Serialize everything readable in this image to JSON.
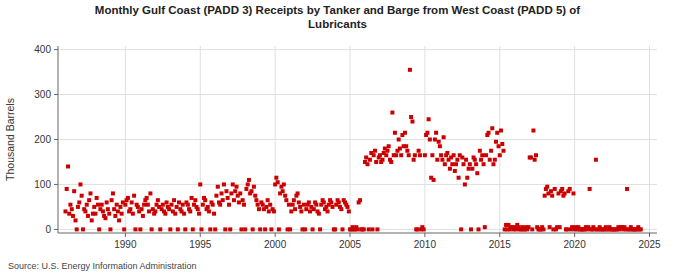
{
  "chart_data": {
    "type": "scatter",
    "title": "Monthly Gulf Coast (PADD 3) Receipts by Tanker and Barge from West Coast (PADD 5) of\nLubricants",
    "y_label": "Thousand Barrels",
    "source": "Source: U.S. Energy Information Administration",
    "color": "#cc0000",
    "marker": "square",
    "grid": true,
    "xlim": [
      1985.5,
      2025.5
    ],
    "ylim": [
      -8,
      408
    ],
    "xticks": [
      1990,
      1995,
      2000,
      2005,
      2010,
      2015,
      2020,
      2025
    ],
    "yticks": [
      0,
      100,
      200,
      300,
      400
    ],
    "x": [
      1986.0,
      1986.08,
      1986.17,
      1986.25,
      1986.33,
      1986.42,
      1986.5,
      1986.58,
      1986.67,
      1986.75,
      1986.83,
      1986.92,
      1987.0,
      1987.08,
      1987.17,
      1987.25,
      1987.33,
      1987.42,
      1987.5,
      1987.58,
      1987.67,
      1987.75,
      1987.83,
      1987.92,
      1988.0,
      1988.08,
      1988.17,
      1988.25,
      1988.33,
      1988.42,
      1988.5,
      1988.58,
      1988.67,
      1988.75,
      1988.83,
      1988.92,
      1989.0,
      1989.08,
      1989.17,
      1989.25,
      1989.33,
      1989.42,
      1989.5,
      1989.58,
      1989.67,
      1989.75,
      1989.83,
      1989.92,
      1990.0,
      1990.08,
      1990.17,
      1990.25,
      1990.33,
      1990.42,
      1990.5,
      1990.58,
      1990.67,
      1990.75,
      1990.83,
      1990.92,
      1991.0,
      1991.08,
      1991.17,
      1991.25,
      1991.33,
      1991.42,
      1991.5,
      1991.58,
      1991.67,
      1991.75,
      1991.83,
      1991.92,
      1992.0,
      1992.08,
      1992.17,
      1992.25,
      1992.33,
      1992.42,
      1992.5,
      1992.58,
      1992.67,
      1992.75,
      1992.83,
      1992.92,
      1993.0,
      1993.08,
      1993.17,
      1993.25,
      1993.33,
      1993.42,
      1993.5,
      1993.58,
      1993.67,
      1993.75,
      1993.83,
      1993.92,
      1994.0,
      1994.08,
      1994.17,
      1994.25,
      1994.33,
      1994.42,
      1994.5,
      1994.58,
      1994.67,
      1994.75,
      1994.83,
      1994.92,
      1995.0,
      1995.08,
      1995.17,
      1995.25,
      1995.33,
      1995.42,
      1995.5,
      1995.58,
      1995.67,
      1995.75,
      1995.83,
      1995.92,
      1996.0,
      1996.08,
      1996.17,
      1996.25,
      1996.33,
      1996.42,
      1996.5,
      1996.58,
      1996.67,
      1996.75,
      1996.83,
      1996.92,
      1997.0,
      1997.08,
      1997.17,
      1997.25,
      1997.33,
      1997.42,
      1997.5,
      1997.58,
      1997.67,
      1997.75,
      1997.83,
      1997.92,
      1998.0,
      1998.08,
      1998.17,
      1998.25,
      1998.33,
      1998.42,
      1998.5,
      1998.58,
      1998.67,
      1998.75,
      1998.83,
      1998.92,
      1999.0,
      1999.08,
      1999.17,
      1999.25,
      1999.33,
      1999.42,
      1999.5,
      1999.58,
      1999.67,
      1999.75,
      1999.83,
      1999.92,
      2000.0,
      2000.08,
      2000.17,
      2000.25,
      2000.33,
      2000.42,
      2000.5,
      2000.58,
      2000.67,
      2000.75,
      2000.83,
      2000.92,
      2001.0,
      2001.08,
      2001.17,
      2001.25,
      2001.33,
      2001.42,
      2001.5,
      2001.58,
      2001.67,
      2001.75,
      2001.83,
      2001.92,
      2002.0,
      2002.08,
      2002.17,
      2002.25,
      2002.33,
      2002.42,
      2002.5,
      2002.58,
      2002.67,
      2002.75,
      2002.83,
      2002.92,
      2003.0,
      2003.08,
      2003.17,
      2003.25,
      2003.33,
      2003.42,
      2003.5,
      2003.58,
      2003.67,
      2003.75,
      2003.83,
      2003.92,
      2004.0,
      2004.08,
      2004.17,
      2004.25,
      2004.33,
      2004.42,
      2004.5,
      2004.58,
      2004.67,
      2004.75,
      2004.83,
      2004.92,
      2005.0,
      2005.08,
      2005.17,
      2005.25,
      2005.33,
      2005.42,
      2005.5,
      2005.58,
      2005.67,
      2005.75,
      2005.83,
      2005.92,
      2006.0,
      2006.08,
      2006.17,
      2006.25,
      2006.33,
      2006.42,
      2006.5,
      2006.58,
      2006.67,
      2006.75,
      2006.83,
      2006.92,
      2007.0,
      2007.08,
      2007.17,
      2007.25,
      2007.33,
      2007.42,
      2007.5,
      2007.58,
      2007.67,
      2007.75,
      2007.83,
      2007.92,
      2008.0,
      2008.08,
      2008.17,
      2008.25,
      2008.33,
      2008.42,
      2008.5,
      2008.58,
      2008.67,
      2008.75,
      2008.83,
      2008.92,
      2009.0,
      2009.08,
      2009.17,
      2009.25,
      2009.33,
      2009.42,
      2009.5,
      2009.58,
      2009.67,
      2009.75,
      2009.83,
      2009.92,
      2010.0,
      2010.08,
      2010.17,
      2010.25,
      2010.33,
      2010.42,
      2010.5,
      2010.58,
      2010.67,
      2010.75,
      2010.83,
      2010.92,
      2011.0,
      2011.08,
      2011.17,
      2011.25,
      2011.33,
      2011.42,
      2011.5,
      2011.58,
      2011.67,
      2011.75,
      2011.83,
      2011.92,
      2012.0,
      2012.08,
      2012.17,
      2012.25,
      2012.33,
      2012.42,
      2012.5,
      2012.58,
      2012.67,
      2012.75,
      2012.83,
      2012.92,
      2013.0,
      2013.08,
      2013.17,
      2013.25,
      2013.33,
      2013.42,
      2013.5,
      2013.58,
      2013.67,
      2013.75,
      2013.83,
      2013.92,
      2014.0,
      2014.08,
      2014.17,
      2014.25,
      2014.33,
      2014.42,
      2014.5,
      2014.58,
      2014.67,
      2014.75,
      2014.83,
      2014.92,
      2015.0,
      2015.08,
      2015.17,
      2015.25,
      2015.33,
      2015.42,
      2015.5,
      2015.58,
      2015.67,
      2015.75,
      2015.83,
      2015.92,
      2016.0,
      2016.08,
      2016.17,
      2016.25,
      2016.33,
      2016.42,
      2016.5,
      2016.58,
      2016.67,
      2016.75,
      2016.83,
      2016.92,
      2017.0,
      2017.08,
      2017.17,
      2017.25,
      2017.33,
      2017.42,
      2017.5,
      2017.58,
      2017.67,
      2017.75,
      2017.83,
      2017.92,
      2018.0,
      2018.08,
      2018.17,
      2018.25,
      2018.33,
      2018.42,
      2018.5,
      2018.58,
      2018.67,
      2018.75,
      2018.83,
      2018.92,
      2019.0,
      2019.08,
      2019.17,
      2019.25,
      2019.33,
      2019.42,
      2019.5,
      2019.58,
      2019.67,
      2019.75,
      2019.83,
      2019.92,
      2020.0,
      2020.08,
      2020.17,
      2020.25,
      2020.33,
      2020.42,
      2020.5,
      2020.58,
      2020.67,
      2020.75,
      2020.83,
      2020.92,
      2021.0,
      2021.08,
      2021.17,
      2021.25,
      2021.33,
      2021.42,
      2021.5,
      2021.58,
      2021.67,
      2021.75,
      2021.83,
      2021.92,
      2022.0,
      2022.08,
      2022.17,
      2022.25,
      2022.33,
      2022.42,
      2022.5,
      2022.58,
      2022.67,
      2022.75,
      2022.83,
      2022.92,
      2023.0,
      2023.08,
      2023.17,
      2023.25,
      2023.33,
      2023.42,
      2023.5,
      2023.58,
      2023.67,
      2023.75,
      2023.83,
      2023.92,
      2024.0,
      2024.08,
      2024.17,
      2024.25,
      2024.33,
      2024.42
    ],
    "y": [
      40,
      90,
      140,
      35,
      55,
      45,
      30,
      85,
      20,
      0,
      50,
      60,
      100,
      75,
      0,
      45,
      40,
      55,
      30,
      65,
      80,
      20,
      35,
      50,
      35,
      70,
      55,
      0,
      45,
      55,
      40,
      30,
      25,
      60,
      45,
      35,
      0,
      65,
      80,
      45,
      30,
      55,
      40,
      20,
      50,
      35,
      60,
      0,
      55,
      65,
      70,
      40,
      45,
      60,
      35,
      75,
      0,
      55,
      50,
      40,
      0,
      45,
      30,
      55,
      65,
      70,
      55,
      40,
      80,
      0,
      45,
      35,
      40,
      55,
      65,
      50,
      0,
      45,
      55,
      40,
      35,
      60,
      50,
      45,
      0,
      55,
      40,
      65,
      35,
      50,
      0,
      60,
      45,
      40,
      55,
      35,
      0,
      60,
      55,
      45,
      40,
      70,
      0,
      55,
      65,
      50,
      45,
      35,
      100,
      0,
      55,
      70,
      65,
      45,
      50,
      40,
      0,
      60,
      55,
      35,
      0,
      75,
      95,
      60,
      55,
      80,
      65,
      100,
      0,
      85,
      70,
      55,
      0,
      80,
      100,
      65,
      85,
      95,
      75,
      60,
      80,
      0,
      65,
      55,
      0,
      90,
      100,
      110,
      80,
      85,
      0,
      95,
      75,
      65,
      55,
      45,
      0,
      60,
      55,
      45,
      0,
      50,
      65,
      40,
      55,
      0,
      45,
      40,
      100,
      115,
      105,
      0,
      80,
      95,
      85,
      100,
      75,
      65,
      0,
      55,
      0,
      40,
      55,
      65,
      45,
      75,
      80,
      60,
      50,
      40,
      0,
      55,
      0,
      45,
      55,
      60,
      40,
      50,
      0,
      45,
      60,
      55,
      40,
      35,
      0,
      55,
      65,
      60,
      45,
      50,
      40,
      55,
      65,
      60,
      50,
      0,
      0,
      55,
      65,
      60,
      50,
      45,
      0,
      65,
      60,
      55,
      50,
      40,
      0,
      0,
      5,
      0,
      0,
      5,
      0,
      60,
      65,
      0,
      0,
      0,
      150,
      160,
      145,
      0,
      155,
      170,
      0,
      165,
      175,
      150,
      0,
      160,
      165,
      150,
      155,
      170,
      180,
      165,
      175,
      185,
      155,
      150,
      260,
      165,
      215,
      165,
      175,
      200,
      180,
      165,
      210,
      185,
      215,
      185,
      175,
      165,
      355,
      250,
      240,
      155,
      165,
      0,
      0,
      175,
      165,
      0,
      5,
      0,
      165,
      210,
      215,
      245,
      200,
      115,
      165,
      110,
      200,
      215,
      155,
      195,
      185,
      165,
      155,
      205,
      145,
      165,
      170,
      155,
      135,
      160,
      145,
      165,
      130,
      145,
      155,
      115,
      165,
      0,
      160,
      145,
      100,
      155,
      115,
      135,
      145,
      0,
      135,
      160,
      155,
      145,
      125,
      0,
      175,
      155,
      165,
      145,
      5,
      165,
      210,
      215,
      155,
      175,
      225,
      145,
      155,
      195,
      215,
      185,
      165,
      220,
      190,
      175,
      0,
      10,
      0,
      10,
      0,
      5,
      5,
      0,
      5,
      0,
      10,
      5,
      0,
      0,
      5,
      0,
      0,
      5,
      0,
      5,
      160,
      160,
      0,
      220,
      155,
      165,
      5,
      0,
      0,
      0,
      5,
      0,
      75,
      90,
      95,
      80,
      5,
      85,
      75,
      0,
      90,
      0,
      5,
      80,
      5,
      85,
      90,
      75,
      80,
      0,
      0,
      85,
      90,
      0,
      5,
      80,
      0,
      5,
      0,
      5,
      0,
      0,
      0,
      0,
      0,
      5,
      0,
      5,
      90,
      0,
      0,
      5,
      0,
      155,
      0,
      0,
      5,
      0,
      0,
      0,
      0,
      5,
      0,
      0,
      5,
      0,
      0,
      0,
      0,
      0,
      0,
      5,
      0,
      5,
      5,
      0,
      5,
      0,
      90,
      0,
      0,
      5,
      0,
      0,
      0,
      0,
      0,
      5,
      0,
      0
    ]
  }
}
